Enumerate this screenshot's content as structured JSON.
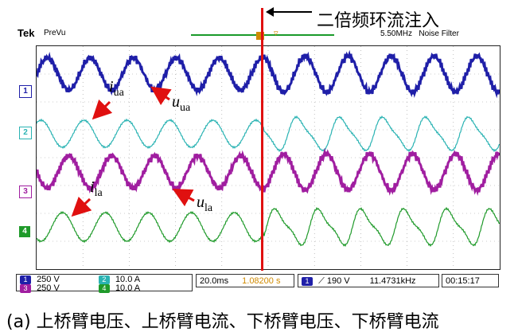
{
  "annotation": {
    "label": "二倍频环流注入",
    "arrow_glyph": "⟵"
  },
  "header": {
    "brand": "Tek",
    "mode": "PreVu",
    "trigger_glyph": "▿",
    "sample_rate": "5.50MHz",
    "filter": "Noise Filter"
  },
  "channels": [
    {
      "id": "1",
      "color": "#1f1fa8"
    },
    {
      "id": "2",
      "color": "#2ab3b3"
    },
    {
      "id": "3",
      "color": "#a01ea0"
    },
    {
      "id": "4",
      "color": "#1f9a2a"
    }
  ],
  "labels": {
    "iua": {
      "base": "i",
      "sub": "ua"
    },
    "uua": {
      "base": "u",
      "sub": "ua"
    },
    "ila": {
      "base": "i",
      "sub": "la"
    },
    "ula": {
      "base": "u",
      "sub": "la"
    }
  },
  "readout": {
    "ch1": {
      "num": "1",
      "value": "250 V"
    },
    "ch2": {
      "num": "2",
      "value": "10.0 A"
    },
    "ch3": {
      "num": "3",
      "value": "250 V"
    },
    "ch4": {
      "num": "4",
      "value": "10.0 A"
    },
    "timebase": "20.0ms",
    "position": "1.08200 s",
    "trigger_src": "1",
    "trigger_glyph": "⟋",
    "trigger_level": "190 V",
    "frequency": "11.4731kHz",
    "time": "00:15:17"
  },
  "caption": "(a) 上桥臂电压、上桥臂电流、下桥臂电压、下桥臂电流"
}
